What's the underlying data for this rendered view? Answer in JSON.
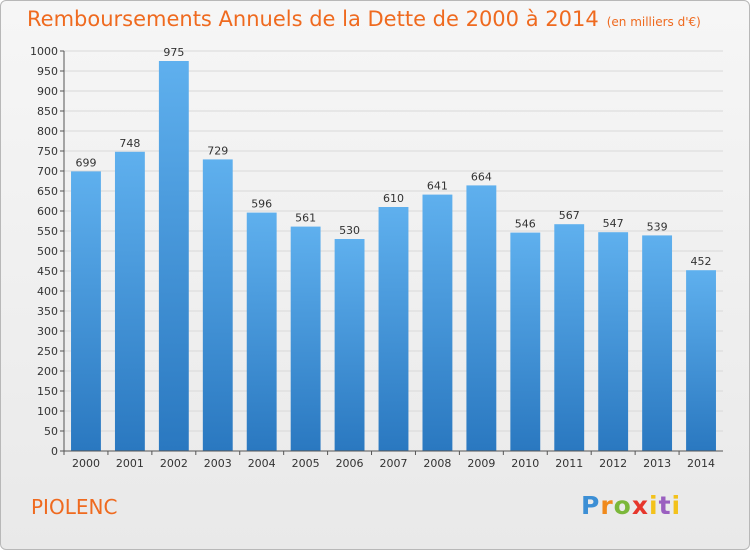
{
  "chart_data": {
    "type": "bar",
    "title": "Remboursements Annuels de la Dette de 2000 à 2014",
    "subtitle": "(en milliers d'€)",
    "xlabel": "",
    "ylabel": "",
    "categories": [
      "2000",
      "2001",
      "2002",
      "2003",
      "2004",
      "2005",
      "2006",
      "2007",
      "2008",
      "2009",
      "2010",
      "2011",
      "2012",
      "2013",
      "2014"
    ],
    "values": [
      699,
      748,
      975,
      729,
      596,
      561,
      530,
      610,
      641,
      664,
      546,
      567,
      547,
      539,
      452
    ],
    "ylim": [
      0,
      1000
    ],
    "yticks": [
      0,
      50,
      100,
      150,
      200,
      250,
      300,
      350,
      400,
      450,
      500,
      550,
      600,
      650,
      700,
      750,
      800,
      850,
      900,
      950,
      1000
    ],
    "grid": true,
    "bar_color": "#4d9de0",
    "bar_color_dark": "#2b79c2"
  },
  "place_name": "PIOLENC",
  "logo": {
    "text": "Proxiti",
    "colors": [
      "#3c8fd5",
      "#f08a1c",
      "#7bb73a",
      "#e6362c",
      "#f3c21b",
      "#9a5fc0"
    ]
  },
  "accent_color": "#ef6a1f"
}
